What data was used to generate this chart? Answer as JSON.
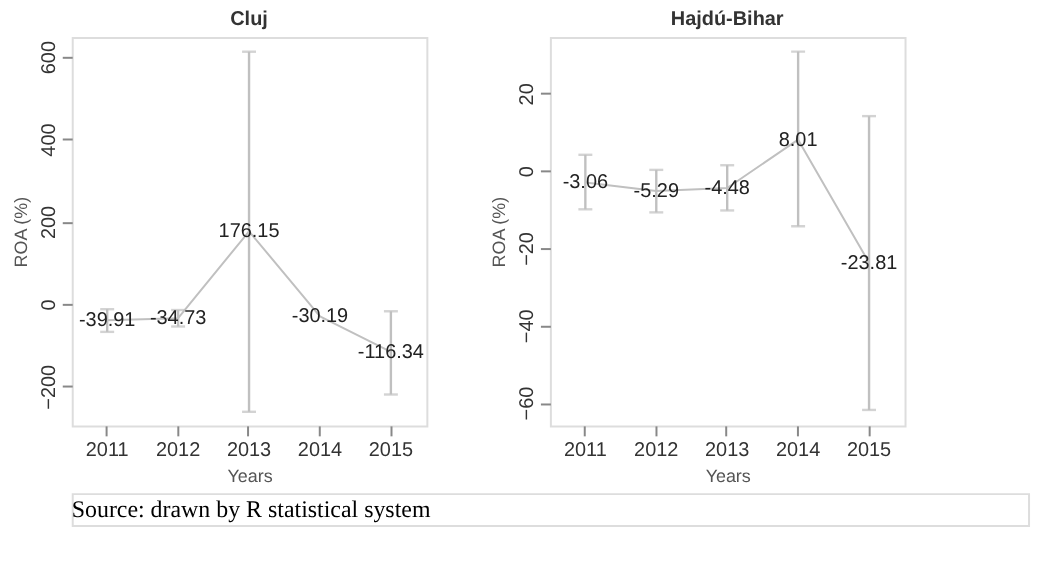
{
  "chart_data": [
    {
      "type": "line",
      "title": "Cluj",
      "xlabel": "Years",
      "ylabel": "ROA (%)",
      "categories": [
        "2011",
        "2012",
        "2013",
        "2014",
        "2015"
      ],
      "series": [
        {
          "color": "#c0c0c0",
          "values": [
            -39.91,
            -34.73,
            176.15,
            -30.19,
            -116.34
          ],
          "errors": [
            [
              -68,
              -13
            ],
            [
              -55,
              -15
            ],
            [
              -262,
              612
            ],
            null,
            [
              -220,
              -18
            ]
          ]
        }
      ],
      "ylim": [
        -295,
        648
      ],
      "yticks": [
        -200,
        0,
        200,
        400,
        600
      ],
      "data_labels": true,
      "marker": "none",
      "annotations": [
        "Source: drawn by R statistical system"
      ]
    },
    {
      "type": "line",
      "title": "Hajdú-Bihar",
      "xlabel": "Years",
      "ylabel": "ROA (%)",
      "categories": [
        "2011",
        "2012",
        "2013",
        "2014",
        "2015"
      ],
      "series": [
        {
          "color": "#c0c0c0",
          "values": [
            -3.06,
            -5.29,
            -4.48,
            8.01,
            -23.81
          ],
          "errors": [
            [
              -10,
              4.1
            ],
            [
              -10.8,
              0.2
            ],
            [
              -10.3,
              1.4
            ],
            [
              -14.4,
              30.8
            ],
            [
              -61.9,
              14.1
            ]
          ]
        }
      ],
      "ylim": [
        -65.9,
        34.6
      ],
      "yticks": [
        -60,
        -40,
        -20,
        0,
        20
      ],
      "data_labels": true,
      "marker": "none"
    }
  ]
}
